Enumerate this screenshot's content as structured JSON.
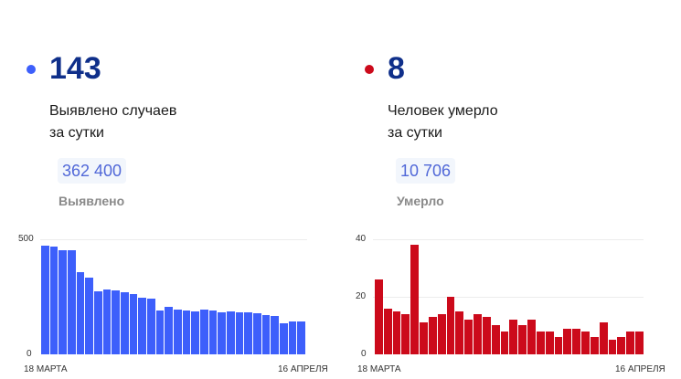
{
  "colors": {
    "cases": "#3d5ffb",
    "deaths": "#cc0a1b",
    "headline_number": "#0f2f8a",
    "total_badge_text": "#5168d8",
    "total_badge_bg": "#f2f6fc"
  },
  "cases": {
    "daily_value": "143",
    "caption_line1": "Выявлено случаев",
    "caption_line2": "за сутки",
    "total_value": "362 400",
    "total_label": "Выявлено",
    "chart": {
      "y_max_label": "500",
      "y_min_label": "0",
      "x_start_label": "18 МАРТА",
      "x_end_label": "16 АПРЕЛЯ"
    }
  },
  "deaths": {
    "daily_value": "8",
    "caption_line1": "Человек умерло",
    "caption_line2": "за сутки",
    "total_value": "10 706",
    "total_label": "Умерло",
    "chart": {
      "y_max_label": "40",
      "y_mid_label": "20",
      "y_min_label": "0",
      "x_start_label": "18 МАРТА",
      "x_end_label": "16 АПРЕЛЯ"
    }
  },
  "chart_data": [
    {
      "type": "bar",
      "title": "Выявлено случаев за сутки",
      "xlabel": "",
      "ylabel": "",
      "x_tick_labels": [
        "18 МАРТА",
        "16 АПРЕЛЯ"
      ],
      "y_tick_labels": [
        "0",
        "500"
      ],
      "ylim": [
        0,
        500
      ],
      "grid": true,
      "color": "#3d5ffb",
      "categories": [
        "18.03",
        "19.03",
        "20.03",
        "21.03",
        "22.03",
        "23.03",
        "24.03",
        "25.03",
        "26.03",
        "27.03",
        "28.03",
        "29.03",
        "30.03",
        "31.03",
        "01.04",
        "02.04",
        "03.04",
        "04.04",
        "05.04",
        "06.04",
        "07.04",
        "08.04",
        "09.04",
        "10.04",
        "11.04",
        "12.04",
        "13.04",
        "14.04",
        "15.04",
        "16.04"
      ],
      "values": [
        472,
        470,
        453,
        453,
        357,
        333,
        272,
        282,
        279,
        270,
        262,
        246,
        243,
        192,
        207,
        196,
        189,
        186,
        193,
        189,
        184,
        187,
        182,
        182,
        178,
        172,
        167,
        134,
        141,
        143
      ]
    },
    {
      "type": "bar",
      "title": "Человек умерло за сутки",
      "xlabel": "",
      "ylabel": "",
      "x_tick_labels": [
        "18 МАРТА",
        "16 АПРЕЛЯ"
      ],
      "y_tick_labels": [
        "0",
        "20",
        "40"
      ],
      "ylim": [
        0,
        40
      ],
      "grid": true,
      "color": "#cc0a1b",
      "categories": [
        "18.03",
        "19.03",
        "20.03",
        "21.03",
        "22.03",
        "23.03",
        "24.03",
        "25.03",
        "26.03",
        "27.03",
        "28.03",
        "29.03",
        "30.03",
        "31.03",
        "01.04",
        "02.04",
        "03.04",
        "04.04",
        "05.04",
        "06.04",
        "07.04",
        "08.04",
        "09.04",
        "10.04",
        "11.04",
        "12.04",
        "13.04",
        "14.04",
        "15.04",
        "16.04"
      ],
      "values": [
        26,
        16,
        15,
        14,
        38,
        11,
        13,
        14,
        20,
        15,
        12,
        14,
        13,
        10,
        8,
        12,
        10,
        12,
        8,
        8,
        6,
        9,
        9,
        8,
        6,
        11,
        5,
        6,
        8,
        8
      ]
    }
  ]
}
